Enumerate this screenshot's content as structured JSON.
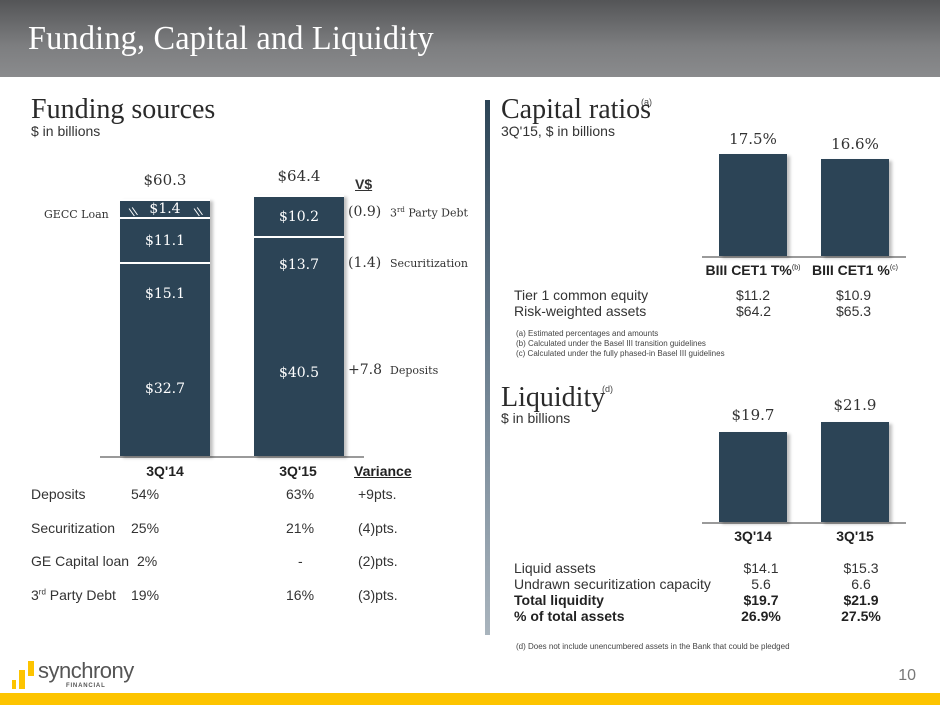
{
  "header": {
    "title": "Funding, Capital and Liquidity"
  },
  "funding": {
    "title": "Funding sources",
    "subtitle": "$ in billions",
    "gecc_label": "GECC Loan",
    "variance_header": "V$",
    "bars": [
      {
        "category": "3Q'14",
        "total": "$60.3",
        "segments": [
          {
            "name": "Deposits",
            "label": "$32.7",
            "value": 32.7
          },
          {
            "name": "Securitization",
            "label": "$15.1",
            "value": 15.1
          },
          {
            "name": "3rd Party Debt",
            "label": "$11.1",
            "value": 11.1
          },
          {
            "name": "GECC Loan",
            "label": "$1.4",
            "value": 1.4
          }
        ]
      },
      {
        "category": "3Q'15",
        "total": "$64.4",
        "segments": [
          {
            "name": "Deposits",
            "label": "$40.5",
            "value": 40.5
          },
          {
            "name": "Securitization",
            "label": "$13.7",
            "value": 13.7
          },
          {
            "name": "3rd Party Debt",
            "label": "$10.2",
            "value": 10.2
          }
        ]
      }
    ],
    "variances": [
      {
        "value": "(0.9)",
        "name_base": "3",
        "name_sup": "rd",
        "name_rest": " Party Debt"
      },
      {
        "value": "(1.4)",
        "name_base": "Securitization",
        "name_sup": "",
        "name_rest": ""
      },
      {
        "value": "+7.8",
        "name_base": "Deposits",
        "name_sup": "",
        "name_rest": ""
      }
    ],
    "table": {
      "headers": [
        "3Q'14",
        "3Q'15",
        "Variance"
      ],
      "rows": [
        {
          "label": "Deposits",
          "sup": "",
          "rest": "",
          "q14": "54%",
          "q15": "63%",
          "var": "+9pts."
        },
        {
          "label": "Securitization",
          "sup": "",
          "rest": "",
          "q14": "25%",
          "q15": "21%",
          "var": "(4)pts."
        },
        {
          "label": "GE Capital loan",
          "sup": "",
          "rest": "",
          "q14": "2%",
          "q15": "-",
          "var": "(2)pts."
        },
        {
          "label": "3",
          "sup": "rd",
          "rest": " Party Debt",
          "q14": "19%",
          "q15": "16%",
          "var": "(3)pts."
        }
      ]
    }
  },
  "capital": {
    "title": "Capital ratios",
    "title_sup": "(a)",
    "subtitle": "3Q'15, $ in billions",
    "rows": [
      {
        "label": "Tier 1 common equity",
        "v1": "$11.2",
        "v2": "$10.9"
      },
      {
        "label": "Risk-weighted assets",
        "v1": "$64.2",
        "v2": "$65.3"
      }
    ],
    "notes": [
      "(a) Estimated percentages and amounts",
      "(b) Calculated under the Basel III transition guidelines",
      "(c) Calculated under the fully phased-in Basel III guidelines"
    ]
  },
  "liquidity": {
    "title": "Liquidity",
    "title_sup": "(d)",
    "subtitle": "$ in billions",
    "rows": [
      {
        "label": "Liquid assets",
        "v1": "$14.1",
        "v2": "$15.3",
        "bold": false
      },
      {
        "label": "Undrawn securitization capacity",
        "v1": "5.6",
        "v2": "6.6",
        "bold": false
      },
      {
        "label": "Total liquidity",
        "v1": "$19.7",
        "v2": "$21.9",
        "bold": true
      },
      {
        "label": "% of total assets",
        "v1": "26.9%",
        "v2": "27.5%",
        "bold": true
      }
    ],
    "note": "(d) Does not include unencumbered assets in the Bank that could be pledged"
  },
  "footer": {
    "logo_text": "synchrony",
    "logo_sub": "FINANCIAL",
    "page_number": "10",
    "accent": "#fdc400"
  },
  "colors": {
    "bar": "#2c4456",
    "header": "#6b6c6e"
  },
  "chart_data": [
    {
      "type": "bar",
      "stacked": true,
      "title": "Funding sources",
      "subtitle": "$ in billions",
      "categories": [
        "3Q'14",
        "3Q'15"
      ],
      "series": [
        {
          "name": "Deposits",
          "values": [
            32.7,
            40.5
          ]
        },
        {
          "name": "Securitization",
          "values": [
            15.1,
            13.7
          ]
        },
        {
          "name": "3rd Party Debt",
          "values": [
            11.1,
            10.2
          ]
        },
        {
          "name": "GECC Loan",
          "values": [
            1.4,
            0
          ]
        }
      ],
      "totals": [
        60.3,
        64.4
      ],
      "variance": {
        "3rd Party Debt": -0.9,
        "Securitization": -1.4,
        "Deposits": 7.8
      }
    },
    {
      "type": "bar",
      "title": "Capital ratios",
      "categories": [
        "BIII CET1 T%",
        "BIII CET1 %"
      ],
      "category_sups": [
        "(b)",
        "(c)"
      ],
      "values": [
        17.5,
        16.6
      ],
      "labels": [
        "17.5%",
        "16.6%"
      ],
      "unit": "%"
    },
    {
      "type": "bar",
      "title": "Liquidity",
      "categories": [
        "3Q'14",
        "3Q'15"
      ],
      "values": [
        19.7,
        21.9
      ],
      "labels": [
        "$19.7",
        "$21.9"
      ],
      "unit": "$B"
    }
  ]
}
